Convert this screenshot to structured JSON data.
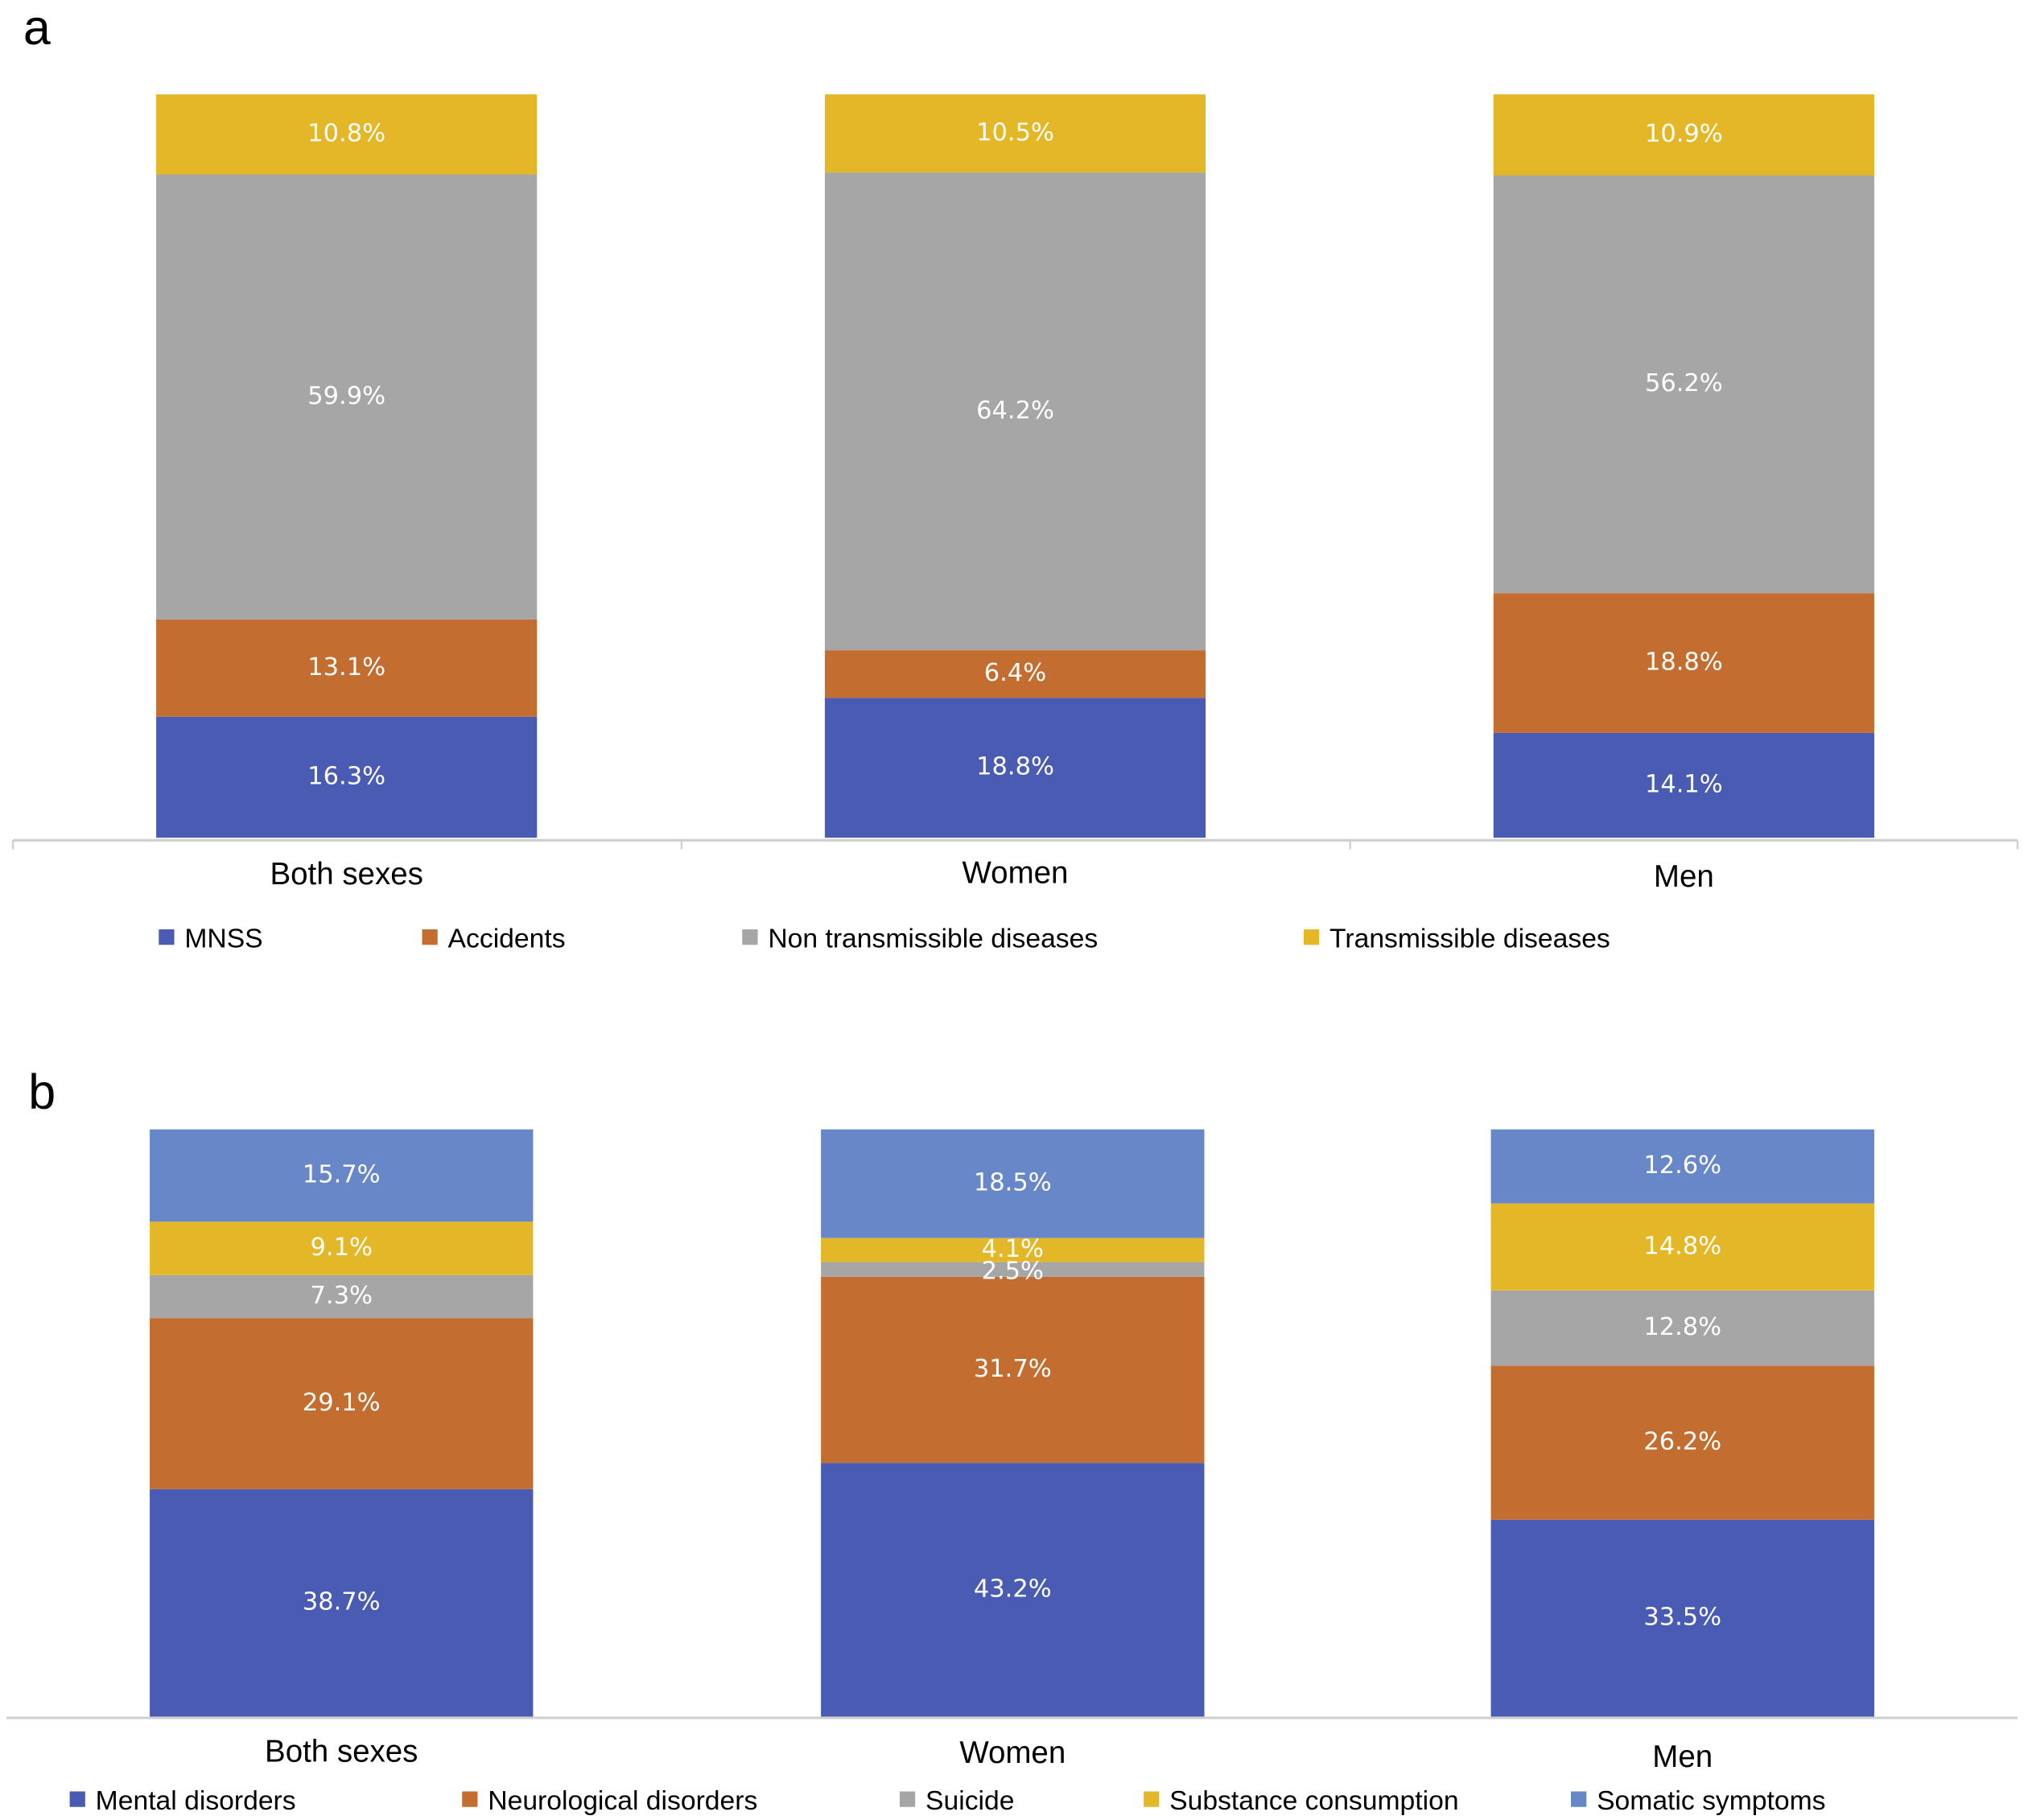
{
  "chart_data": [
    {
      "type": "bar",
      "stacked": true,
      "panel_label": "a",
      "categories": [
        "Both sexes",
        "Women",
        "Men"
      ],
      "series": [
        {
          "name": "MNSS",
          "color": "#4a5bb4",
          "values": [
            16.3,
            18.8,
            14.1
          ],
          "labels": [
            "16.3%",
            "18.8%",
            "14.1%"
          ]
        },
        {
          "name": "Accidents",
          "color": "#c46d30",
          "values": [
            13.1,
            6.4,
            18.8
          ],
          "labels": [
            "13.1%",
            "6.4%",
            "18.8%"
          ]
        },
        {
          "name": "Non transmissible diseases",
          "color": "#a6a6a6",
          "values": [
            59.9,
            64.2,
            56.2
          ],
          "labels": [
            "59.9%",
            "64.2%",
            "56.2%"
          ]
        },
        {
          "name": "Transmissible diseases",
          "color": "#e3b728",
          "values": [
            10.8,
            10.5,
            10.9
          ],
          "labels": [
            "10.8%",
            "10.5%",
            "10.9%"
          ]
        }
      ],
      "ylim": [
        0,
        100
      ],
      "grid": false,
      "legend_position": "bottom"
    },
    {
      "type": "bar",
      "stacked": true,
      "panel_label": "b",
      "categories": [
        "Both sexes",
        "Women",
        "Men"
      ],
      "series": [
        {
          "name": "Mental disorders",
          "color": "#4a5bb4",
          "values": [
            38.7,
            43.2,
            33.5
          ],
          "labels": [
            "38.7%",
            "43.2%",
            "33.5%"
          ]
        },
        {
          "name": "Neurological disorders",
          "color": "#c46d30",
          "values": [
            29.1,
            31.7,
            26.2
          ],
          "labels": [
            "29.1%",
            "31.7%",
            "26.2%"
          ]
        },
        {
          "name": "Suicide",
          "color": "#a6a6a6",
          "values": [
            7.3,
            2.5,
            12.8
          ],
          "labels": [
            "7.3%",
            "2.5%",
            "12.8%"
          ]
        },
        {
          "name": "Substance consumption",
          "color": "#e3b728",
          "values": [
            9.1,
            4.1,
            14.8
          ],
          "labels": [
            "9.1%",
            "4.1%",
            "14.8%"
          ]
        },
        {
          "name": "Somatic symptoms",
          "color": "#6887c9",
          "values": [
            15.7,
            18.5,
            12.6
          ],
          "labels": [
            "15.7%",
            "18.5%",
            "12.6%"
          ]
        }
      ],
      "ylim": [
        0,
        100
      ],
      "grid": false,
      "legend_position": "bottom"
    }
  ]
}
